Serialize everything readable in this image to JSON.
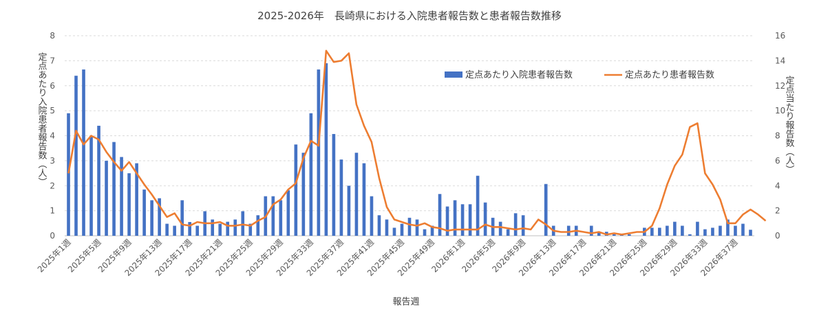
{
  "chart_data": {
    "type": "bar+line",
    "title": "2025-2026年　長崎県における入院患者報告数と患者報告数推移",
    "xlabel": "報告週",
    "ylabel_left": "定点あたり入院患者報告数（人）",
    "ylabel_right": "定点当たり報告数（人）",
    "ylim_left": [
      0,
      8
    ],
    "ylim_right": [
      0,
      16
    ],
    "yticks_left": [
      "0",
      "1",
      "2",
      "3",
      "4",
      "5",
      "6",
      "7",
      "8"
    ],
    "yticks_right": [
      "0",
      "2",
      "4",
      "6",
      "8",
      "10",
      "12",
      "14",
      "16"
    ],
    "grid": true,
    "legend_position": "top-right",
    "x_tick_labels": [
      "2025年1週",
      "2025年5週",
      "2025年9週",
      "2025年13週",
      "2025年17週",
      "2025年21週",
      "2025年25週",
      "2025年29週",
      "2025年33週",
      "2025年37週",
      "2025年41週",
      "2025年45週",
      "2025年49週",
      "2026年1週",
      "2026年5週",
      "2026年9週",
      "2026年13週",
      "2026年17週",
      "2026年21週",
      "2026年25週",
      "2026年29週",
      "2026年33週",
      "2026年37週"
    ],
    "series": [
      {
        "name": "定点あたり入院患者報告数",
        "type": "bar",
        "axis": "left",
        "color": "#4472c4",
        "values": [
          4.9,
          6.4,
          6.65,
          4.0,
          4.4,
          3.0,
          3.75,
          3.15,
          2.5,
          2.9,
          1.85,
          1.42,
          1.5,
          0.48,
          0.4,
          1.42,
          0.55,
          0.4,
          0.98,
          0.65,
          0.48,
          0.56,
          0.65,
          0.98,
          0.48,
          0.82,
          1.58,
          1.58,
          1.42,
          1.82,
          3.65,
          3.32,
          4.9,
          6.65,
          6.9,
          4.07,
          3.05,
          2.0,
          3.32,
          2.9,
          1.58,
          0.82,
          0.65,
          0.32,
          0.48,
          0.72,
          0.65,
          0.26,
          0.4,
          1.67,
          1.17,
          1.42,
          1.26,
          1.26,
          2.4,
          1.33,
          0.72,
          0.56,
          0.26,
          0.9,
          0.82,
          0.0,
          0.0,
          2.07,
          0.4,
          0.0,
          0.4,
          0.4,
          0.0,
          0.4,
          0.16,
          0.16,
          0.06,
          0.06,
          0.06,
          0.0,
          0.32,
          0.32,
          0.32,
          0.4,
          0.56,
          0.4,
          0.06,
          0.56,
          0.26,
          0.32,
          0.4,
          0.65,
          0.4,
          0.48,
          0.24
        ]
      },
      {
        "name": "定点あたり患者報告数",
        "type": "line",
        "axis": "right",
        "color": "#ed7d31",
        "values": [
          5.0,
          8.4,
          7.3,
          8.0,
          7.7,
          6.7,
          5.9,
          5.2,
          5.9,
          5.0,
          4.1,
          3.3,
          2.4,
          1.5,
          1.8,
          0.9,
          0.8,
          1.1,
          1.0,
          1.0,
          1.1,
          0.8,
          0.8,
          0.9,
          0.8,
          1.2,
          1.5,
          2.5,
          2.9,
          3.7,
          4.2,
          6.2,
          7.6,
          7.2,
          14.8,
          13.9,
          14.0,
          14.6,
          10.5,
          8.8,
          7.5,
          4.6,
          2.3,
          1.3,
          1.1,
          0.9,
          0.8,
          1.0,
          0.7,
          0.6,
          0.4,
          0.5,
          0.5,
          0.5,
          0.5,
          0.9,
          0.7,
          0.7,
          0.6,
          0.5,
          0.6,
          0.5,
          1.3,
          0.9,
          0.4,
          0.3,
          0.3,
          0.4,
          0.3,
          0.2,
          0.3,
          0.1,
          0.2,
          0.1,
          0.2,
          0.3,
          0.3,
          0.8,
          2.2,
          4.1,
          5.6,
          6.5,
          8.7,
          9.0,
          5.0,
          4.1,
          2.9,
          1.0,
          1.0,
          1.7,
          2.1,
          1.7,
          1.2
        ]
      }
    ]
  }
}
